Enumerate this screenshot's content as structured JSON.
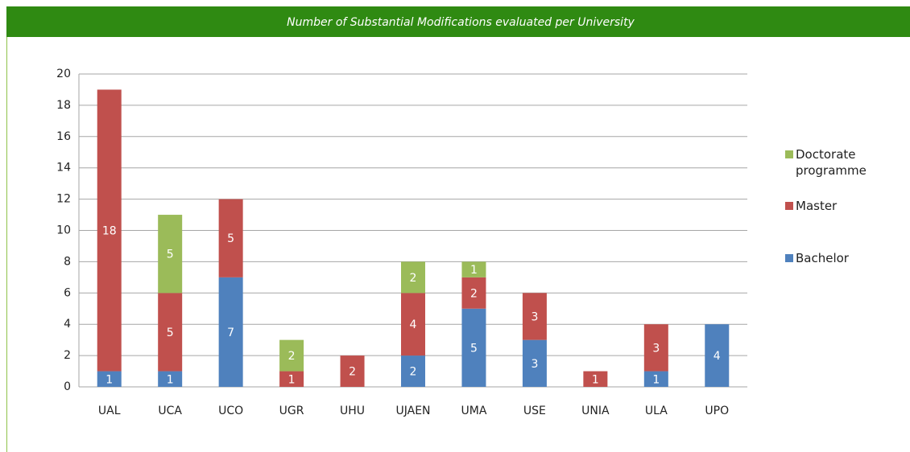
{
  "chart_data": {
    "type": "bar",
    "stacked": true,
    "title": "Number of Substantial Modifications evaluated per University",
    "categories": [
      "UAL",
      "UCA",
      "UCO",
      "UGR",
      "UHU",
      "UJAEN",
      "UMA",
      "USE",
      "UNIA",
      "ULA",
      "UPO"
    ],
    "series": [
      {
        "name": "Bachelor",
        "color": "#4f81bd",
        "values": [
          1,
          1,
          7,
          null,
          null,
          2,
          5,
          3,
          null,
          1,
          4
        ]
      },
      {
        "name": "Master",
        "color": "#c0504d",
        "values": [
          18,
          5,
          5,
          1,
          2,
          4,
          2,
          3,
          1,
          3,
          null
        ]
      },
      {
        "name": "Doctorate programme",
        "color": "#9bbb59",
        "values": [
          null,
          5,
          null,
          2,
          null,
          2,
          1,
          null,
          null,
          null,
          null
        ]
      }
    ],
    "ylim": [
      0,
      20
    ],
    "yticks": [
      0,
      2,
      4,
      6,
      8,
      10,
      12,
      14,
      16,
      18,
      20
    ],
    "grid": true,
    "legend": "right"
  }
}
